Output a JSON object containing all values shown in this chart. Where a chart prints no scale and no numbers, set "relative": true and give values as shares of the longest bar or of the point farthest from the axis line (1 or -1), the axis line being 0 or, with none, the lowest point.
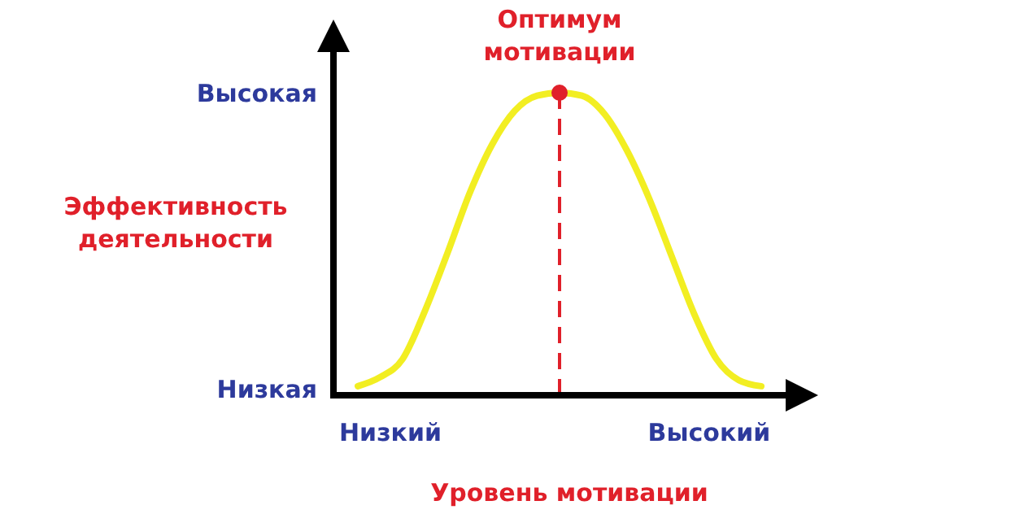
{
  "chart_data": {
    "type": "line",
    "relative": true,
    "xlabel": "Уровень мотивации",
    "ylabel": "Эффективность деятельности",
    "categories": [
      null,
      null,
      null,
      null,
      null,
      null,
      null,
      null,
      null,
      null,
      null,
      null,
      null,
      null,
      null,
      null,
      null,
      null,
      null
    ],
    "series": [
      {
        "color": "#f2ee22",
        "values": [
          0.03,
          0.06,
          0.12,
          0.28,
          0.47,
          0.67,
          0.83,
          0.94,
          0.99,
          1,
          0.99,
          0.93,
          0.81,
          0.65,
          0.46,
          0.27,
          0.12,
          0.05,
          0.03
        ]
      }
    ],
    "annotations": [
      "Оптимум мотивации",
      "Высокая",
      "Низкая",
      "Низкий",
      "Высокий"
    ]
  }
}
